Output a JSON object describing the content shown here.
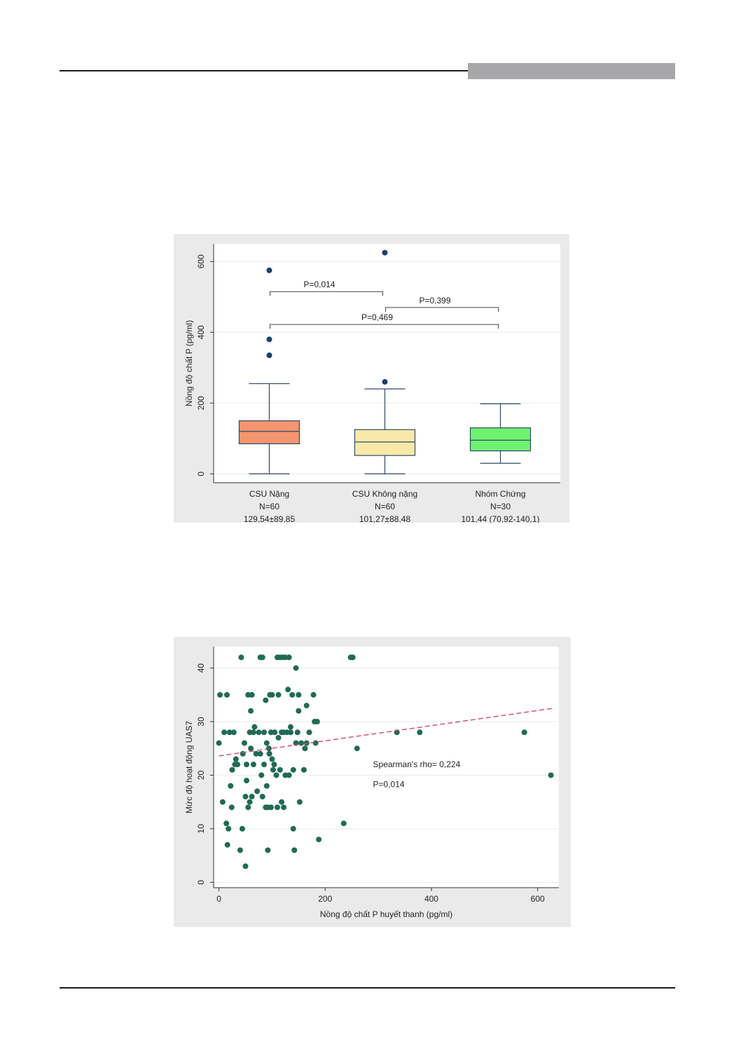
{
  "colors": {
    "page": "#ffffff",
    "figure_bg": "#eaeaea",
    "plot_bg": "#ffffff",
    "axis": "#333333",
    "box_stroke": "#2e4a6b",
    "outlier": "#1f3f6e",
    "scatter_point": "#1f6b55",
    "fit_line": "#d04a6a"
  },
  "chart_data": [
    {
      "type": "box",
      "ylabel": "Nồng độ chất P (pg/ml)",
      "ylim": [
        -25,
        650
      ],
      "yticks": [
        0,
        200,
        400,
        600
      ],
      "grid": true,
      "groups": [
        {
          "label_lines": [
            "CSU Nặng",
            "N=60",
            "129,54±89,85"
          ],
          "color": "#f4956f",
          "min": 0,
          "q1": 85,
          "median": 120,
          "q3": 150,
          "max": 255,
          "outliers": [
            335,
            380,
            575
          ]
        },
        {
          "label_lines": [
            "CSU Không nặng",
            "N=60",
            "101,27±88,48"
          ],
          "color": "#f8e9a8",
          "min": 0,
          "q1": 52,
          "median": 90,
          "q3": 125,
          "max": 240,
          "outliers": [
            260,
            625
          ]
        },
        {
          "label_lines": [
            "Nhóm Chứng",
            "N=30",
            "101,44 (70,92-140,1)"
          ],
          "color": "#6ff26f",
          "min": 30,
          "q1": 65,
          "median": 95,
          "q3": 130,
          "max": 198,
          "outliers": []
        }
      ],
      "comparisons": [
        {
          "from": 0,
          "to": 1,
          "y": 515,
          "label": "P=0,014"
        },
        {
          "from": 1,
          "to": 2,
          "y": 470,
          "label": "P=0,399"
        },
        {
          "from": 0,
          "to": 2,
          "y": 422,
          "label": "P=0,469"
        }
      ]
    },
    {
      "type": "scatter",
      "xlabel": "Nồng độ chất P huyết thanh (pg/ml)",
      "ylabel": "Mức độ hoạt động UAS7",
      "xlim": [
        -10,
        640
      ],
      "ylim": [
        -1,
        44
      ],
      "xticks": [
        0,
        200,
        400,
        600
      ],
      "yticks": [
        0,
        10,
        20,
        30,
        40
      ],
      "grid": true,
      "fit_line": {
        "x": [
          0,
          630
        ],
        "y": [
          23.6,
          32.5
        ],
        "style": "dashed"
      },
      "annotations": [
        "Spearman's rho= 0,224",
        "P=0,014"
      ],
      "points": [
        [
          0,
          26
        ],
        [
          2,
          35
        ],
        [
          7,
          15
        ],
        [
          10,
          28
        ],
        [
          14,
          11
        ],
        [
          15,
          35
        ],
        [
          16,
          7
        ],
        [
          18,
          10
        ],
        [
          20,
          28
        ],
        [
          22,
          18
        ],
        [
          24,
          14
        ],
        [
          25,
          21
        ],
        [
          28,
          28
        ],
        [
          30,
          22
        ],
        [
          32,
          23
        ],
        [
          35,
          22
        ],
        [
          40,
          6
        ],
        [
          42,
          42
        ],
        [
          44,
          10
        ],
        [
          45,
          24
        ],
        [
          48,
          26
        ],
        [
          50,
          3
        ],
        [
          50,
          16
        ],
        [
          52,
          22
        ],
        [
          52,
          19
        ],
        [
          55,
          14
        ],
        [
          55,
          35
        ],
        [
          58,
          28
        ],
        [
          58,
          15
        ],
        [
          60,
          25
        ],
        [
          60,
          32
        ],
        [
          62,
          16
        ],
        [
          62,
          35
        ],
        [
          65,
          22
        ],
        [
          65,
          28
        ],
        [
          67,
          29
        ],
        [
          70,
          24
        ],
        [
          72,
          17
        ],
        [
          75,
          28
        ],
        [
          78,
          42
        ],
        [
          78,
          24
        ],
        [
          80,
          20
        ],
        [
          82,
          16
        ],
        [
          82,
          42
        ],
        [
          85,
          28
        ],
        [
          85,
          22
        ],
        [
          88,
          14
        ],
        [
          88,
          34
        ],
        [
          90,
          18
        ],
        [
          90,
          26
        ],
        [
          92,
          6
        ],
        [
          92,
          14
        ],
        [
          94,
          25
        ],
        [
          95,
          24
        ],
        [
          96,
          35
        ],
        [
          98,
          14
        ],
        [
          98,
          28
        ],
        [
          100,
          23
        ],
        [
          100,
          35
        ],
        [
          102,
          21
        ],
        [
          104,
          22
        ],
        [
          105,
          28
        ],
        [
          108,
          20
        ],
        [
          110,
          14
        ],
        [
          110,
          42
        ],
        [
          112,
          35
        ],
        [
          112,
          27
        ],
        [
          115,
          42
        ],
        [
          115,
          21
        ],
        [
          118,
          28
        ],
        [
          118,
          15
        ],
        [
          120,
          42
        ],
        [
          122,
          28
        ],
        [
          122,
          14
        ],
        [
          125,
          20
        ],
        [
          125,
          42
        ],
        [
          128,
          28
        ],
        [
          130,
          36
        ],
        [
          132,
          42
        ],
        [
          132,
          20
        ],
        [
          135,
          28
        ],
        [
          135,
          29
        ],
        [
          138,
          35
        ],
        [
          140,
          10
        ],
        [
          140,
          21
        ],
        [
          142,
          6
        ],
        [
          145,
          26
        ],
        [
          145,
          40
        ],
        [
          148,
          28
        ],
        [
          150,
          35
        ],
        [
          150,
          32
        ],
        [
          152,
          15
        ],
        [
          155,
          26
        ],
        [
          160,
          21
        ],
        [
          162,
          25
        ],
        [
          165,
          33
        ],
        [
          165,
          26
        ],
        [
          170,
          28
        ],
        [
          178,
          35
        ],
        [
          180,
          30
        ],
        [
          182,
          26
        ],
        [
          185,
          30
        ],
        [
          188,
          8
        ],
        [
          235,
          11
        ],
        [
          248,
          42
        ],
        [
          252,
          42
        ],
        [
          260,
          25
        ],
        [
          335,
          28
        ],
        [
          378,
          28
        ],
        [
          575,
          28
        ],
        [
          625,
          20
        ]
      ]
    }
  ]
}
